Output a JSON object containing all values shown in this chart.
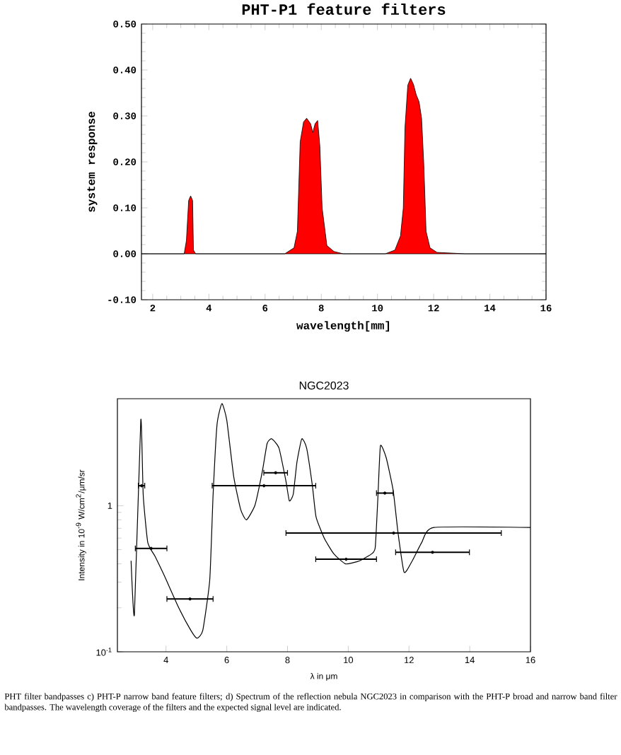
{
  "chart_data": [
    {
      "type": "area",
      "title": "PHT-P1 feature filters",
      "xlabel": "wavelength[mm]",
      "ylabel": "system response",
      "color": "#ff0000",
      "x": [
        1.6,
        3.12,
        3.2,
        3.28,
        3.35,
        3.42,
        3.45,
        3.53,
        6.7,
        7.03,
        7.15,
        7.25,
        7.37,
        7.48,
        7.62,
        7.7,
        7.78,
        7.87,
        7.95,
        8.03,
        8.2,
        8.45,
        8.78,
        10.28,
        10.62,
        10.82,
        10.92,
        10.98,
        11.08,
        11.18,
        11.28,
        11.38,
        11.48,
        11.57,
        11.65,
        11.73,
        11.87,
        12.12,
        13.12,
        16
      ],
      "values": [
        0,
        0,
        0.029,
        0.116,
        0.126,
        0.116,
        0.008,
        0,
        0,
        0.013,
        0.049,
        0.244,
        0.287,
        0.295,
        0.283,
        0.264,
        0.283,
        0.29,
        0.234,
        0.1,
        0.018,
        0.005,
        0,
        0,
        0.008,
        0.039,
        0.1,
        0.275,
        0.367,
        0.382,
        0.369,
        0.346,
        0.331,
        0.295,
        0.193,
        0.049,
        0.013,
        0.003,
        0,
        0
      ],
      "xlim": [
        1.6,
        16
      ],
      "ylim": [
        -0.1,
        0.5
      ],
      "xticks": [
        2,
        4,
        6,
        8,
        10,
        12,
        14,
        16
      ],
      "yticks": [
        {
          "value": -0.1,
          "label": "-0.10"
        },
        {
          "value": 0,
          "label": "0.00"
        },
        {
          "value": 0.1,
          "label": "0.10"
        },
        {
          "value": 0.2,
          "label": "0.20"
        },
        {
          "value": 0.3,
          "label": "0.30"
        },
        {
          "value": 0.4,
          "label": "0.40"
        },
        {
          "value": 0.5,
          "label": "0.50"
        }
      ]
    },
    {
      "type": "line",
      "title": "NGC2023",
      "xlabel": "λ in μm",
      "ylabel": "Intensity in 10$^{-9}$ W/cm$^{2}$/μm/sr",
      "log": "y",
      "xlim": [
        2.4,
        16
      ],
      "ylim": [
        0.1,
        5.4
      ],
      "xticks": [
        4,
        6,
        8,
        10,
        12,
        14,
        16
      ],
      "yticks": [
        {
          "value": 0.1,
          "label": "10$^{-1}$"
        },
        1
      ],
      "series": [
        {
          "type": "line",
          "color": "#000000",
          "x": [
            2.85,
            2.96,
            3.17,
            3.25,
            3.4,
            3.64,
            3.95,
            4.42,
            4.82,
            5.02,
            5.21,
            5.44,
            5.55,
            5.68,
            5.84,
            6.0,
            6.23,
            6.46,
            6.65,
            6.93,
            7.17,
            7.33,
            7.48,
            7.72,
            7.95,
            8.06,
            8.19,
            8.31,
            8.47,
            8.63,
            8.82,
            8.94,
            9.21,
            9.52,
            9.91,
            10.38,
            10.78,
            10.89,
            10.98,
            11.06,
            11.25,
            11.48,
            11.64,
            11.84,
            12.11,
            12.42,
            12.82,
            16
          ],
          "values": [
            0.42,
            0.18,
            3.86,
            1.18,
            0.56,
            0.45,
            0.33,
            0.2,
            0.14,
            0.124,
            0.14,
            0.31,
            1.18,
            3.59,
            5.0,
            3.86,
            1.58,
            0.94,
            0.8,
            1.01,
            1.71,
            2.67,
            2.87,
            2.48,
            1.47,
            1.08,
            1.2,
            1.98,
            2.87,
            2.48,
            1.37,
            0.84,
            0.6,
            0.47,
            0.4,
            0.42,
            0.47,
            0.52,
            1.18,
            2.57,
            2.13,
            1.27,
            0.65,
            0.35,
            0.42,
            0.56,
            0.71,
            0.71
          ]
        },
        {
          "type": "scatter",
          "color": "#000000",
          "x": [
            3.51,
            4.79,
            7.225,
            7.61,
            11.495,
            9.93,
            11.205,
            12.775,
            3.195
          ],
          "values": [
            0.51,
            0.23,
            1.37,
            1.68,
            0.65,
            0.43,
            1.22,
            0.48,
            1.37
          ],
          "xerrors": [
            [
              2.99,
              4.03
            ],
            [
              4.03,
              5.55
            ],
            [
              5.52,
              8.93
            ],
            [
              7.22,
              8.0
            ],
            [
              7.95,
              15.04
            ],
            [
              8.93,
              10.93
            ],
            [
              10.93,
              11.48
            ],
            [
              11.56,
              13.99
            ],
            [
              3.09,
              3.3
            ]
          ]
        }
      ],
      "annotations": [
        "PHT filter bandpasses c) PHT-P narrow band feature filters; d) Spectrum of the reflection nebula NGC2023 in comparison with the PHT-P broad and narrow band filter bandpasses. The wavelength coverage of the filters and the expected signal level are indicated."
      ]
    }
  ]
}
